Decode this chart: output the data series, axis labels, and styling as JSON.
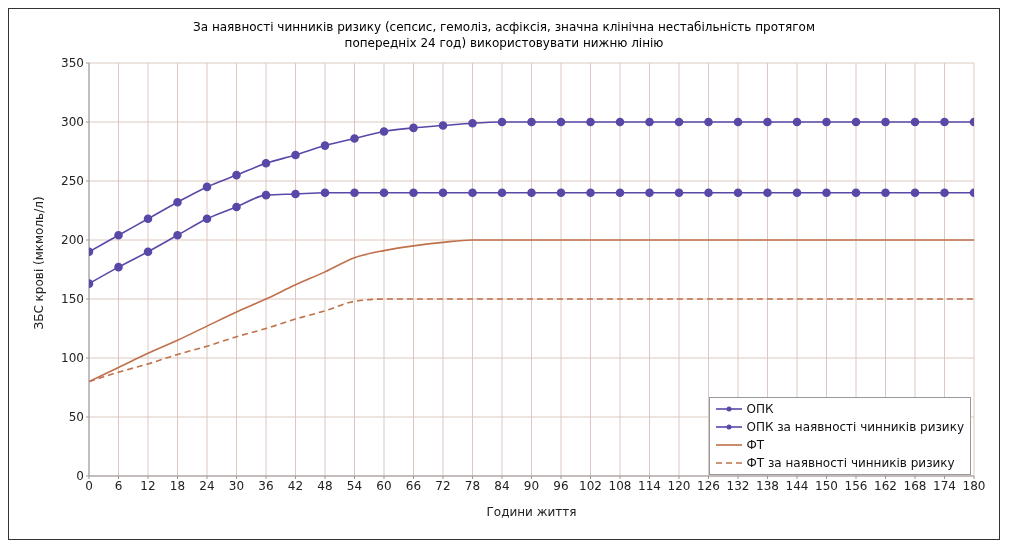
{
  "chart_data": {
    "type": "line",
    "title": "За наявності чинників ризику (сепсис, гемоліз, асфіксія, значна клінічна нестабільність протягом попередніх 24 год) використовувати нижню лінію",
    "xlabel": "Години життя",
    "ylabel": "ЗБС крові (мкмоль/л)",
    "x": [
      0,
      6,
      12,
      18,
      24,
      30,
      36,
      42,
      48,
      54,
      60,
      66,
      72,
      78,
      84,
      90,
      96,
      102,
      108,
      114,
      120,
      126,
      132,
      138,
      144,
      150,
      156,
      162,
      168,
      174,
      180
    ],
    "series": [
      {
        "name": "ОПК",
        "color": "#5a48a8",
        "marker": "circle",
        "line_style": "solid",
        "values": [
          190,
          204,
          218,
          232,
          245,
          255,
          265,
          272,
          280,
          286,
          292,
          295,
          297,
          299,
          300,
          300,
          300,
          300,
          300,
          300,
          300,
          300,
          300,
          300,
          300,
          300,
          300,
          300,
          300,
          300,
          300
        ]
      },
      {
        "name": "ОПК за наявності чинників ризику",
        "color": "#5a48a8",
        "marker": "circle",
        "line_style": "solid",
        "values": [
          163,
          177,
          190,
          204,
          218,
          228,
          238,
          239,
          240,
          240,
          240,
          240,
          240,
          240,
          240,
          240,
          240,
          240,
          240,
          240,
          240,
          240,
          240,
          240,
          240,
          240,
          240,
          240,
          240,
          240,
          240
        ]
      },
      {
        "name": "ФТ",
        "color": "#c0704a",
        "marker": "none",
        "line_style": "solid",
        "values": [
          80,
          92,
          104,
          115,
          127,
          139,
          150,
          162,
          173,
          185,
          191,
          195,
          198,
          200,
          200,
          200,
          200,
          200,
          200,
          200,
          200,
          200,
          200,
          200,
          200,
          200,
          200,
          200,
          200,
          200,
          200
        ]
      },
      {
        "name": "ФТ за наявності чинників ризику",
        "color": "#c0704a",
        "marker": "none",
        "line_style": "dashed",
        "values": [
          80,
          88,
          95,
          103,
          110,
          118,
          125,
          133,
          140,
          148,
          150,
          150,
          150,
          150,
          150,
          150,
          150,
          150,
          150,
          150,
          150,
          150,
          150,
          150,
          150,
          150,
          150,
          150,
          150,
          150,
          150
        ]
      }
    ],
    "xlim": [
      0,
      180
    ],
    "xticks": [
      0,
      6,
      12,
      18,
      24,
      30,
      36,
      42,
      48,
      54,
      60,
      66,
      72,
      78,
      84,
      90,
      96,
      102,
      108,
      114,
      120,
      126,
      132,
      138,
      144,
      150,
      156,
      162,
      168,
      174,
      180
    ],
    "ylim": [
      0,
      350
    ],
    "yticks": [
      0,
      50,
      100,
      150,
      200,
      250,
      300,
      350
    ],
    "grid": true,
    "legend": "bottom right"
  }
}
